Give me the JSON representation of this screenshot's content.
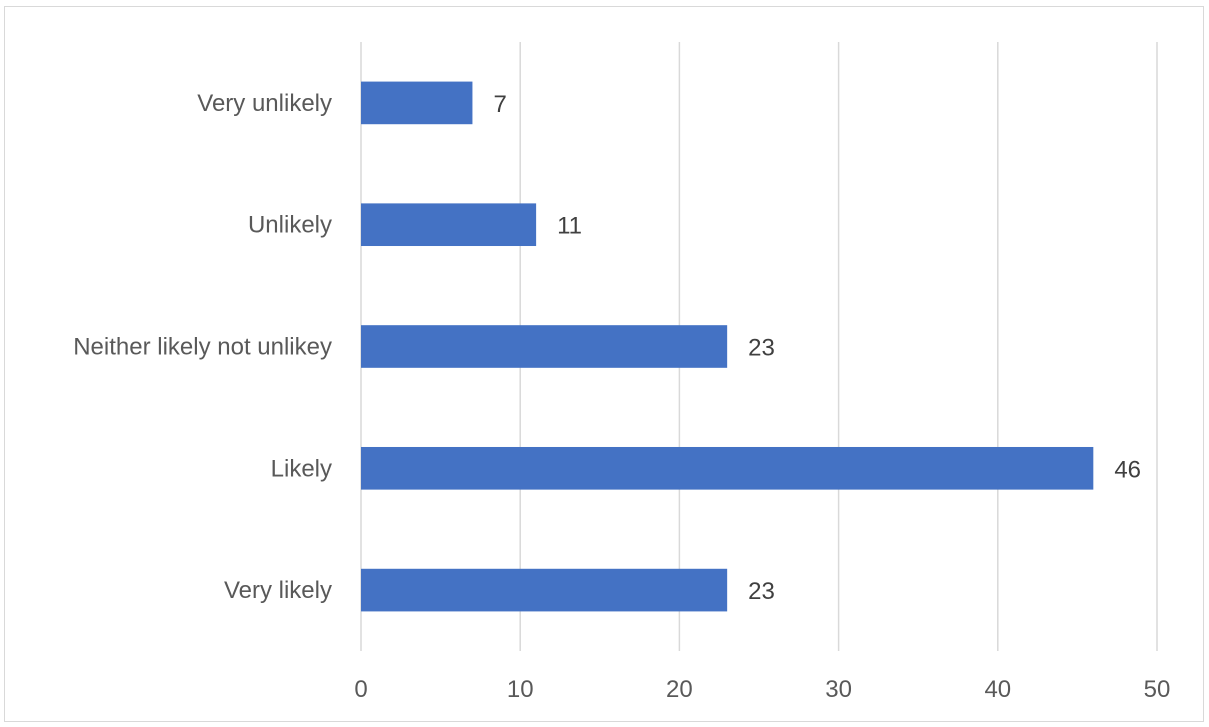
{
  "chart_data": {
    "type": "bar",
    "orientation": "horizontal",
    "title": "",
    "xlabel": "",
    "ylabel": "",
    "categories": [
      "Very unlikely",
      "Unlikely",
      "Neither likely not unlikey",
      "Likely",
      "Very likely"
    ],
    "values": [
      7,
      11,
      23,
      46,
      23
    ],
    "xlim": [
      0,
      50
    ],
    "xticks": [
      0,
      10,
      20,
      30,
      40,
      50
    ],
    "grid": "vertical",
    "legend": "none",
    "data_labels": true,
    "bar_color": "#4472C4",
    "grid_color": "#d9d9d9"
  }
}
